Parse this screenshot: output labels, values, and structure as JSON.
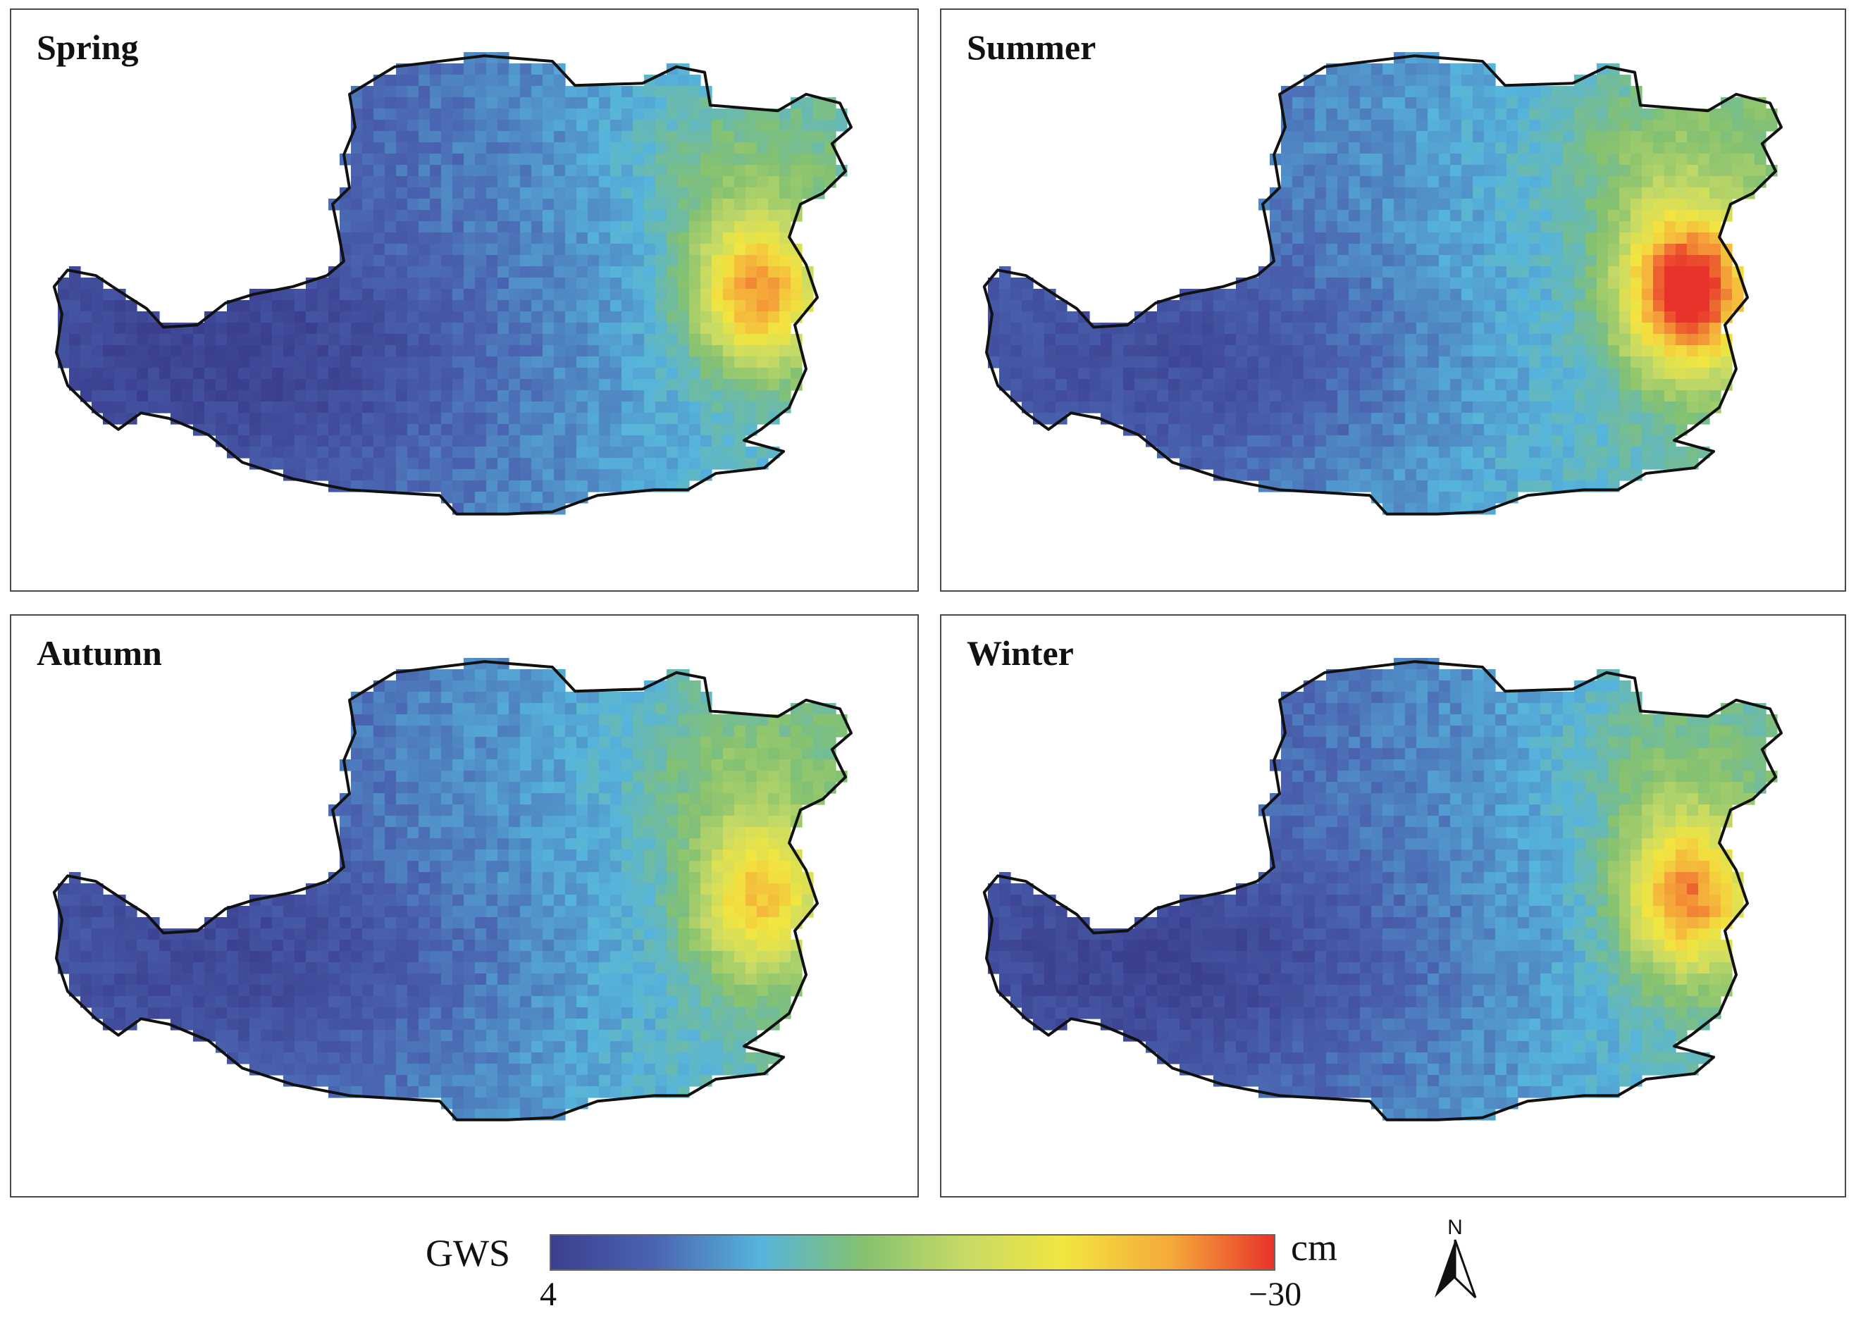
{
  "panels": [
    {
      "title": "Spring",
      "hotspot": 0.62,
      "lowspot": 0.05
    },
    {
      "title": "Summer",
      "hotspot": 0.82,
      "lowspot": 0.0
    },
    {
      "title": "Autumn",
      "hotspot": 0.5,
      "lowspot": 0.02
    },
    {
      "title": "Winter",
      "hotspot": 0.65,
      "lowspot": 0.04
    }
  ],
  "legend": {
    "variable": "GWS",
    "unit": "cm",
    "min_label": "4",
    "max_label": "−30",
    "min_value": 4,
    "max_value": -30,
    "colors": [
      "#3b3f8f",
      "#4a63b0",
      "#56b4dc",
      "#84c170",
      "#c6da66",
      "#f2e540",
      "#f5a83a",
      "#e8332a"
    ]
  },
  "north_arrow": {
    "label": "N"
  }
}
